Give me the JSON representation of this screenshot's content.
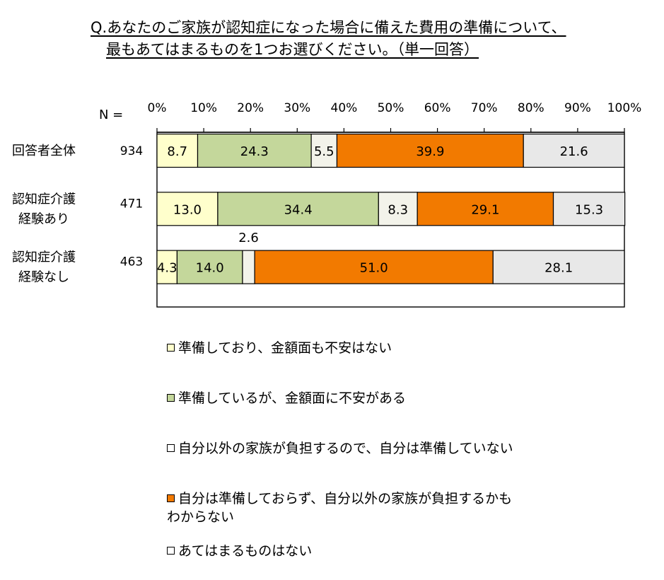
{
  "title": {
    "line1": "Q.あなたのご家族が認知症になった場合に備えた費用の準備について、",
    "line2": "最もあてはまるものを1つお選びください。（単一回答）"
  },
  "n_label": "N =",
  "chart_data": {
    "type": "bar",
    "orientation": "horizontal-stacked-100",
    "xlim": [
      0,
      100
    ],
    "ticks": [
      "0%",
      "10%",
      "20%",
      "30%",
      "40%",
      "50%",
      "60%",
      "70%",
      "80%",
      "90%",
      "100%"
    ],
    "categories": [
      {
        "label": [
          "回答者全体"
        ],
        "n": "934"
      },
      {
        "label": [
          "認知症介護",
          "経験あり"
        ],
        "n": "471"
      },
      {
        "label": [
          "認知症介護",
          "経験なし"
        ],
        "n": "463"
      }
    ],
    "series": [
      {
        "name": "準備しており、金額面も不安はない",
        "color": "#FFFFCC",
        "values": [
          8.7,
          13.0,
          4.3
        ],
        "labels": [
          "8.7",
          "13.0",
          "4.3"
        ]
      },
      {
        "name": "準備しているが、金額面に不安がある",
        "color": "#C4D79B",
        "values": [
          24.3,
          34.4,
          14.0
        ],
        "labels": [
          "24.3",
          "34.4",
          "14.0"
        ]
      },
      {
        "name": "自分以外の家族が負担するので、自分は準備していない",
        "color": "#F3F3EA",
        "values": [
          5.5,
          8.3,
          2.6
        ],
        "labels": [
          "5.5",
          "8.3",
          "2.6"
        ]
      },
      {
        "name": "自分は準備しておらず、自分以外の家族が負担するかもわからない",
        "color": "#F27A00",
        "values": [
          39.9,
          29.1,
          51.0
        ],
        "labels": [
          "39.9",
          "29.1",
          "51.0"
        ]
      },
      {
        "name": "あてはまるものはない",
        "color": "#E8E8E8",
        "values": [
          21.6,
          15.3,
          28.1
        ],
        "labels": [
          "21.6",
          "15.3",
          "28.1"
        ]
      }
    ],
    "legend": {
      "position": "bottom",
      "items": [
        {
          "lines": [
            "準備しており、金額面も不安はない"
          ],
          "color": "#FFFFCC"
        },
        {
          "lines": [
            "準備しているが、金額面に不安がある"
          ],
          "color": "#C4D79B"
        },
        {
          "lines": [
            "自分以外の家族が負担するので、自分は準備していない"
          ],
          "color": "#FFFFFF"
        },
        {
          "lines": [
            "自分は準備しておらず、自分以外の家族が負担するかも",
            "わからない"
          ],
          "color": "#F27A00"
        },
        {
          "lines": [
            "あてはまるものはない"
          ],
          "color": "#FFFFFF"
        }
      ]
    }
  }
}
